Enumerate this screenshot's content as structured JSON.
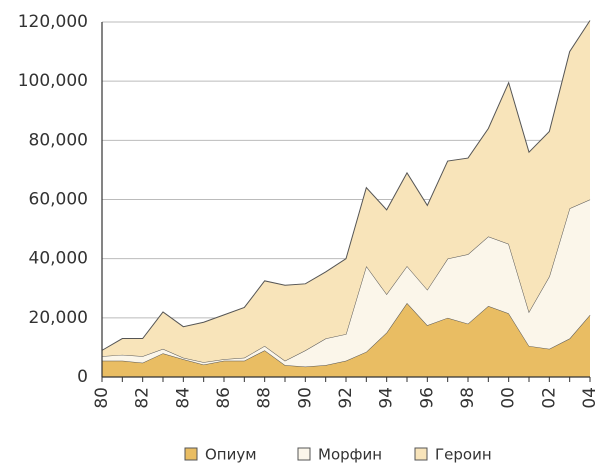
{
  "chart_data": {
    "type": "stacked_area",
    "categories": [
      "80",
      null,
      "82",
      null,
      "84",
      null,
      "86",
      null,
      "88",
      null,
      "90",
      null,
      "92",
      null,
      "94",
      null,
      "96",
      null,
      "98",
      null,
      "00",
      null,
      "02",
      null,
      "04"
    ],
    "series": [
      {
        "name": "Опиум",
        "color": "#e9bd63",
        "values": [
          5500,
          5500,
          4800,
          8000,
          6000,
          4200,
          5500,
          5500,
          9000,
          4000,
          3500,
          4000,
          5500,
          8500,
          15000,
          25000,
          17500,
          20000,
          18000,
          24000,
          21500,
          10500,
          9500,
          13000,
          21000
        ]
      },
      {
        "name": "Морфин",
        "color": "#fbf6ea",
        "values": [
          1500,
          2000,
          2200,
          1500,
          500,
          800,
          500,
          1000,
          1500,
          1500,
          5500,
          9000,
          9000,
          29000,
          13000,
          12500,
          12000,
          20000,
          23500,
          23500,
          23500,
          11500,
          24500,
          44000,
          39000
        ]
      },
      {
        "name": "Героин",
        "color": "#f8e4ba",
        "values": [
          2000,
          5500,
          6000,
          12500,
          10500,
          13500,
          15000,
          17000,
          22000,
          25500,
          22500,
          22500,
          25500,
          26500,
          28500,
          31500,
          28500,
          33000,
          32500,
          36500,
          54500,
          54000,
          49000,
          53000,
          60500
        ]
      }
    ],
    "ylim": [
      0,
      120000
    ],
    "yticks": [
      0,
      {
        "value": 20000,
        "label": "20,000"
      },
      {
        "value": 40000,
        "label": "40,000"
      },
      {
        "value": 60000,
        "label": "60,000"
      },
      {
        "value": 80000,
        "label": "80,000"
      },
      {
        "value": 100000,
        "label": "100,000"
      },
      {
        "value": 120000,
        "label": "120,000"
      }
    ],
    "grid": true,
    "legend": "bottom"
  }
}
